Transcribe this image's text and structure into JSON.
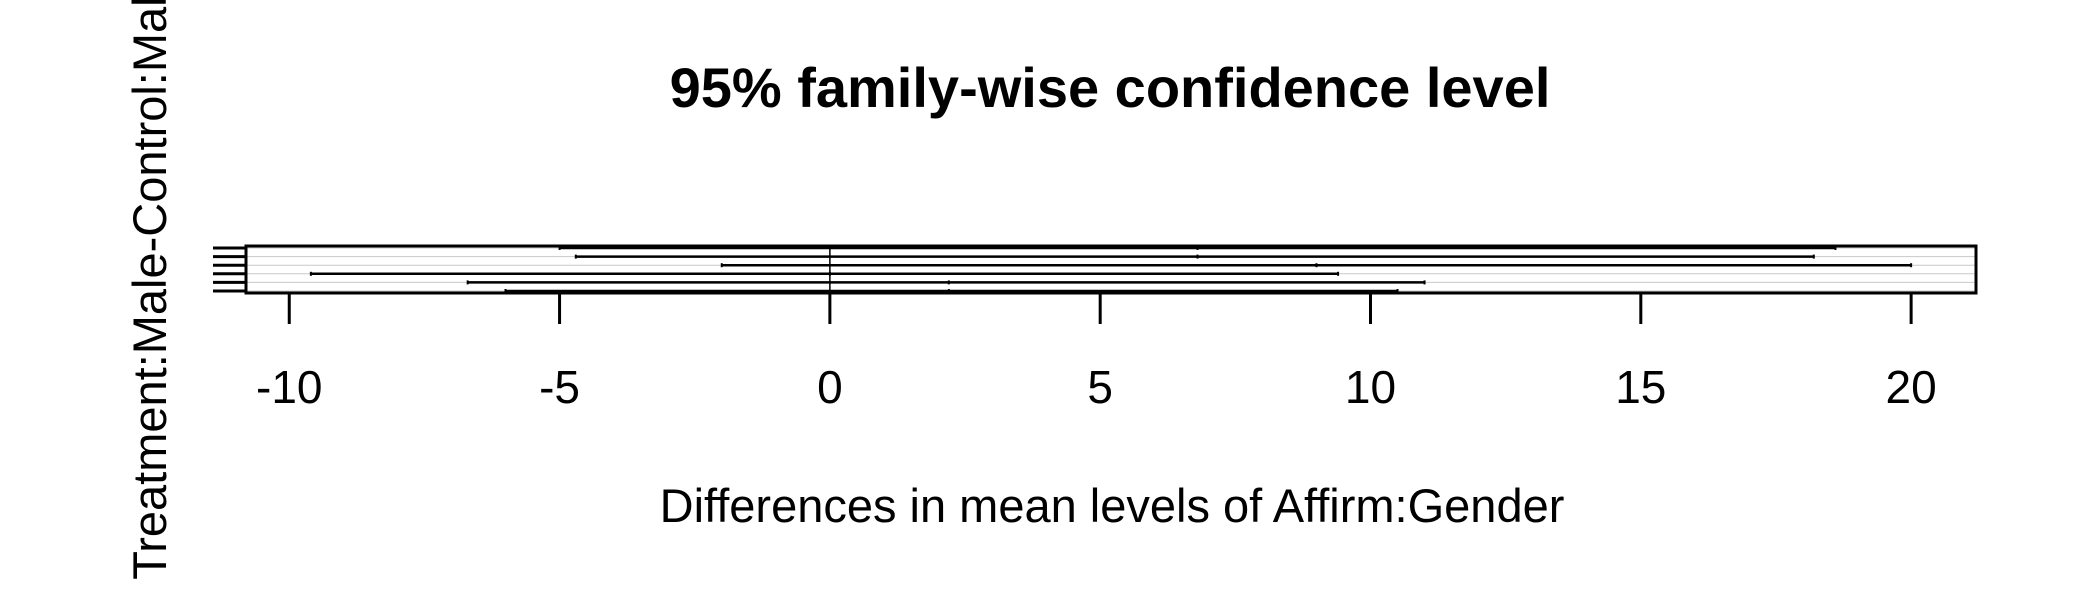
{
  "chart_data": {
    "type": "interval",
    "title": "95% family-wise confidence level",
    "xlabel": "Differences in mean levels of Affirm:Gender",
    "ylabel": "Treatment:Male-Control:Male",
    "xlim": [
      -10.8,
      21.2
    ],
    "x_ticks": [
      -10,
      -5,
      0,
      5,
      10,
      15,
      20
    ],
    "x_tick_labels": [
      "-10",
      "-5",
      "0",
      "5",
      "10",
      "15",
      "20"
    ],
    "reference_line": 0,
    "comparisons": [
      {
        "estimate": 6.8,
        "lower": -5.0,
        "upper": 18.6
      },
      {
        "estimate": 6.8,
        "lower": -4.7,
        "upper": 18.2
      },
      {
        "estimate": 9.0,
        "lower": -2.0,
        "upper": 20.0
      },
      {
        "estimate": 0.0,
        "lower": -9.6,
        "upper": 9.4
      },
      {
        "estimate": 2.2,
        "lower": -6.7,
        "upper": 11.0
      },
      {
        "estimate": 2.2,
        "lower": -6.0,
        "upper": 10.5
      }
    ],
    "grid": "horizontal"
  }
}
